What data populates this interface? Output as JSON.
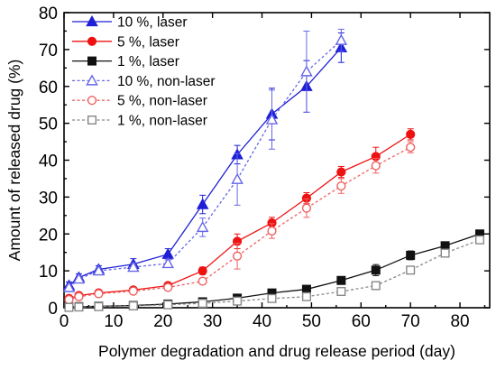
{
  "chart_data": {
    "type": "line",
    "title": "",
    "xlabel": "Polymer degradation and drug release period (day)",
    "ylabel": "Amount of released drug (%)",
    "xlim": [
      0,
      86
    ],
    "ylim": [
      0,
      80
    ],
    "xticks": [
      0,
      10,
      20,
      30,
      40,
      50,
      60,
      70,
      80
    ],
    "yticks": [
      0,
      10,
      20,
      30,
      40,
      50,
      60,
      70,
      80
    ],
    "grid": false,
    "legend_position": "top-left",
    "series": [
      {
        "name": "10 %, laser",
        "color": "#1f1fd6",
        "marker": "triangle",
        "filled": true,
        "dashed": false,
        "x": [
          1,
          3,
          7,
          14,
          21,
          28,
          35,
          42,
          49,
          56
        ],
        "y": [
          6.0,
          8.2,
          10.4,
          11.8,
          14.5,
          28.0,
          41.5,
          52.5,
          60.0,
          70.5
        ],
        "err": [
          1,
          1,
          1,
          1.5,
          1.5,
          2.5,
          2.5,
          7,
          7,
          4
        ]
      },
      {
        "name": "5 %, laser",
        "color": "#ee1111",
        "marker": "circle",
        "filled": true,
        "dashed": false,
        "x": [
          1,
          3,
          7,
          14,
          21,
          28,
          35,
          42,
          49,
          56,
          63,
          70
        ],
        "y": [
          2.5,
          3.3,
          4.0,
          4.8,
          6.0,
          10.0,
          18.0,
          23.0,
          29.7,
          36.8,
          41.0,
          47.0
        ],
        "err": [
          0.5,
          0.5,
          0.6,
          0.6,
          0.8,
          1,
          2,
          1.5,
          1.5,
          1.5,
          2.5,
          1.5
        ]
      },
      {
        "name": "1 %, laser",
        "color": "#111111",
        "marker": "square",
        "filled": true,
        "dashed": false,
        "x": [
          1,
          3,
          7,
          14,
          21,
          28,
          35,
          42,
          49,
          56,
          63,
          70,
          77,
          84
        ],
        "y": [
          0.2,
          0.3,
          0.4,
          0.6,
          1.0,
          1.6,
          2.6,
          4.0,
          5.0,
          7.4,
          10.2,
          14.2,
          16.8,
          20.0
        ],
        "err": [
          0.1,
          0.1,
          0.1,
          0.2,
          0.3,
          0.3,
          0.5,
          0.5,
          0.8,
          0.8,
          1.5,
          1.2,
          1,
          0.8
        ]
      },
      {
        "name": "10 %, non-laser",
        "color": "#6666e8",
        "marker": "triangle",
        "filled": false,
        "dashed": true,
        "x": [
          1,
          3,
          7,
          14,
          21,
          28,
          35,
          42,
          49,
          56
        ],
        "y": [
          5.5,
          7.8,
          10.0,
          11.0,
          12.0,
          21.8,
          34.8,
          51.0,
          64.0,
          72.5
        ],
        "err": [
          0.8,
          0.8,
          0.8,
          1,
          1,
          2.5,
          7,
          8,
          11,
          3
        ]
      },
      {
        "name": "5 %, non-laser",
        "color": "#f06060",
        "marker": "circle",
        "filled": false,
        "dashed": true,
        "x": [
          1,
          3,
          7,
          14,
          21,
          28,
          35,
          42,
          49,
          56,
          63,
          70
        ],
        "y": [
          2.2,
          3.0,
          3.8,
          4.5,
          5.5,
          7.2,
          14.0,
          20.8,
          27.0,
          33.0,
          38.5,
          43.5
        ],
        "err": [
          0.4,
          0.4,
          0.5,
          0.5,
          0.7,
          0.8,
          3.5,
          2,
          2.5,
          2,
          2,
          1.5
        ]
      },
      {
        "name": "1 %, non-laser",
        "color": "#888888",
        "marker": "square",
        "filled": false,
        "dashed": true,
        "x": [
          1,
          3,
          7,
          14,
          21,
          28,
          35,
          42,
          49,
          56,
          63,
          70,
          77,
          84
        ],
        "y": [
          0.1,
          0.2,
          0.3,
          0.5,
          0.8,
          1.2,
          1.8,
          2.5,
          3.0,
          4.4,
          6.0,
          10.2,
          14.8,
          18.4
        ],
        "err": [
          0.1,
          0.1,
          0.1,
          0.1,
          0.2,
          0.2,
          0.3,
          0.3,
          0.4,
          0.5,
          0.6,
          0.8,
          0.8,
          0.8
        ]
      }
    ]
  }
}
